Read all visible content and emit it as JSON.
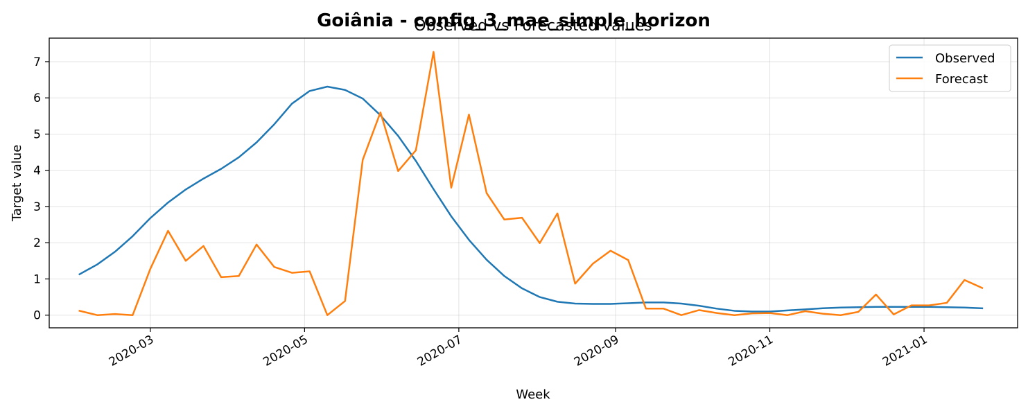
{
  "chart_data": {
    "type": "line",
    "suptitle": "Goiânia - config_3_mae_simple_horizon",
    "title": "Observed vs Forecasted values",
    "xlabel": "Week",
    "ylabel": "Target value",
    "xlim": [
      "2020-01-21",
      "2021-02-07"
    ],
    "ylim": [
      -0.35,
      7.65
    ],
    "y_ticks": [
      0,
      1,
      2,
      3,
      4,
      5,
      6,
      7
    ],
    "x_ticks": [
      "2020-03-01",
      "2020-05-01",
      "2020-07-01",
      "2020-09-01",
      "2020-11-01",
      "2021-01-01"
    ],
    "x_tick_labels": [
      "2020-03",
      "2020-05",
      "2020-07",
      "2020-09",
      "2020-11",
      "2021-01"
    ],
    "grid": true,
    "legend_position": "top-right",
    "series": [
      {
        "name": "Observed",
        "color": "#1f77b4",
        "points": [
          [
            "2020-02-02",
            1.13
          ],
          [
            "2020-02-09",
            1.4
          ],
          [
            "2020-02-16",
            1.75
          ],
          [
            "2020-02-23",
            2.18
          ],
          [
            "2020-03-01",
            2.68
          ],
          [
            "2020-03-08",
            3.11
          ],
          [
            "2020-03-15",
            3.47
          ],
          [
            "2020-03-22",
            3.77
          ],
          [
            "2020-03-29",
            4.04
          ],
          [
            "2020-04-05",
            4.36
          ],
          [
            "2020-04-12",
            4.77
          ],
          [
            "2020-04-19",
            5.27
          ],
          [
            "2020-04-26",
            5.84
          ],
          [
            "2020-05-03",
            6.19
          ],
          [
            "2020-05-10",
            6.31
          ],
          [
            "2020-05-17",
            6.22
          ],
          [
            "2020-05-24",
            5.98
          ],
          [
            "2020-05-31",
            5.52
          ],
          [
            "2020-06-07",
            4.95
          ],
          [
            "2020-06-14",
            4.26
          ],
          [
            "2020-06-21",
            3.48
          ],
          [
            "2020-06-28",
            2.73
          ],
          [
            "2020-07-05",
            2.08
          ],
          [
            "2020-07-12",
            1.53
          ],
          [
            "2020-07-19",
            1.08
          ],
          [
            "2020-07-26",
            0.74
          ],
          [
            "2020-08-02",
            0.5
          ],
          [
            "2020-08-09",
            0.37
          ],
          [
            "2020-08-16",
            0.32
          ],
          [
            "2020-08-23",
            0.31
          ],
          [
            "2020-08-30",
            0.31
          ],
          [
            "2020-09-06",
            0.33
          ],
          [
            "2020-09-13",
            0.35
          ],
          [
            "2020-09-20",
            0.35
          ],
          [
            "2020-09-27",
            0.32
          ],
          [
            "2020-10-04",
            0.26
          ],
          [
            "2020-10-11",
            0.18
          ],
          [
            "2020-10-18",
            0.12
          ],
          [
            "2020-10-25",
            0.1
          ],
          [
            "2020-11-01",
            0.1
          ],
          [
            "2020-11-08",
            0.13
          ],
          [
            "2020-11-15",
            0.16
          ],
          [
            "2020-11-22",
            0.19
          ],
          [
            "2020-11-29",
            0.21
          ],
          [
            "2020-12-06",
            0.22
          ],
          [
            "2020-12-13",
            0.23
          ],
          [
            "2020-12-20",
            0.23
          ],
          [
            "2020-12-27",
            0.23
          ],
          [
            "2021-01-03",
            0.23
          ],
          [
            "2021-01-10",
            0.22
          ],
          [
            "2021-01-17",
            0.21
          ],
          [
            "2021-01-24",
            0.19
          ]
        ]
      },
      {
        "name": "Forecast",
        "color": "#ff7f0e",
        "points": [
          [
            "2020-02-02",
            0.12
          ],
          [
            "2020-02-09",
            0.0
          ],
          [
            "2020-02-16",
            0.03
          ],
          [
            "2020-02-23",
            0.0
          ],
          [
            "2020-03-01",
            1.28
          ],
          [
            "2020-03-08",
            2.33
          ],
          [
            "2020-03-15",
            1.5
          ],
          [
            "2020-03-22",
            1.91
          ],
          [
            "2020-03-29",
            1.05
          ],
          [
            "2020-04-05",
            1.08
          ],
          [
            "2020-04-12",
            1.95
          ],
          [
            "2020-04-19",
            1.33
          ],
          [
            "2020-04-26",
            1.17
          ],
          [
            "2020-05-03",
            1.21
          ],
          [
            "2020-05-10",
            0.0
          ],
          [
            "2020-05-17",
            0.39
          ],
          [
            "2020-05-24",
            4.29
          ],
          [
            "2020-05-31",
            5.6
          ],
          [
            "2020-06-07",
            3.98
          ],
          [
            "2020-06-14",
            4.55
          ],
          [
            "2020-06-21",
            7.27
          ],
          [
            "2020-06-28",
            3.52
          ],
          [
            "2020-07-05",
            5.54
          ],
          [
            "2020-07-12",
            3.37
          ],
          [
            "2020-07-19",
            2.64
          ],
          [
            "2020-07-26",
            2.69
          ],
          [
            "2020-08-02",
            1.99
          ],
          [
            "2020-08-09",
            2.81
          ],
          [
            "2020-08-16",
            0.87
          ],
          [
            "2020-08-23",
            1.42
          ],
          [
            "2020-08-30",
            1.78
          ],
          [
            "2020-09-06",
            1.52
          ],
          [
            "2020-09-13",
            0.18
          ],
          [
            "2020-09-20",
            0.18
          ],
          [
            "2020-09-27",
            0.0
          ],
          [
            "2020-10-04",
            0.14
          ],
          [
            "2020-10-11",
            0.06
          ],
          [
            "2020-10-18",
            0.0
          ],
          [
            "2020-10-25",
            0.05
          ],
          [
            "2020-11-01",
            0.06
          ],
          [
            "2020-11-08",
            0.0
          ],
          [
            "2020-11-15",
            0.11
          ],
          [
            "2020-11-22",
            0.04
          ],
          [
            "2020-11-29",
            0.0
          ],
          [
            "2020-12-06",
            0.09
          ],
          [
            "2020-12-13",
            0.57
          ],
          [
            "2020-12-20",
            0.02
          ],
          [
            "2020-12-27",
            0.27
          ],
          [
            "2021-01-03",
            0.27
          ],
          [
            "2021-01-10",
            0.34
          ],
          [
            "2021-01-17",
            0.97
          ],
          [
            "2021-01-24",
            0.75
          ]
        ]
      }
    ]
  }
}
